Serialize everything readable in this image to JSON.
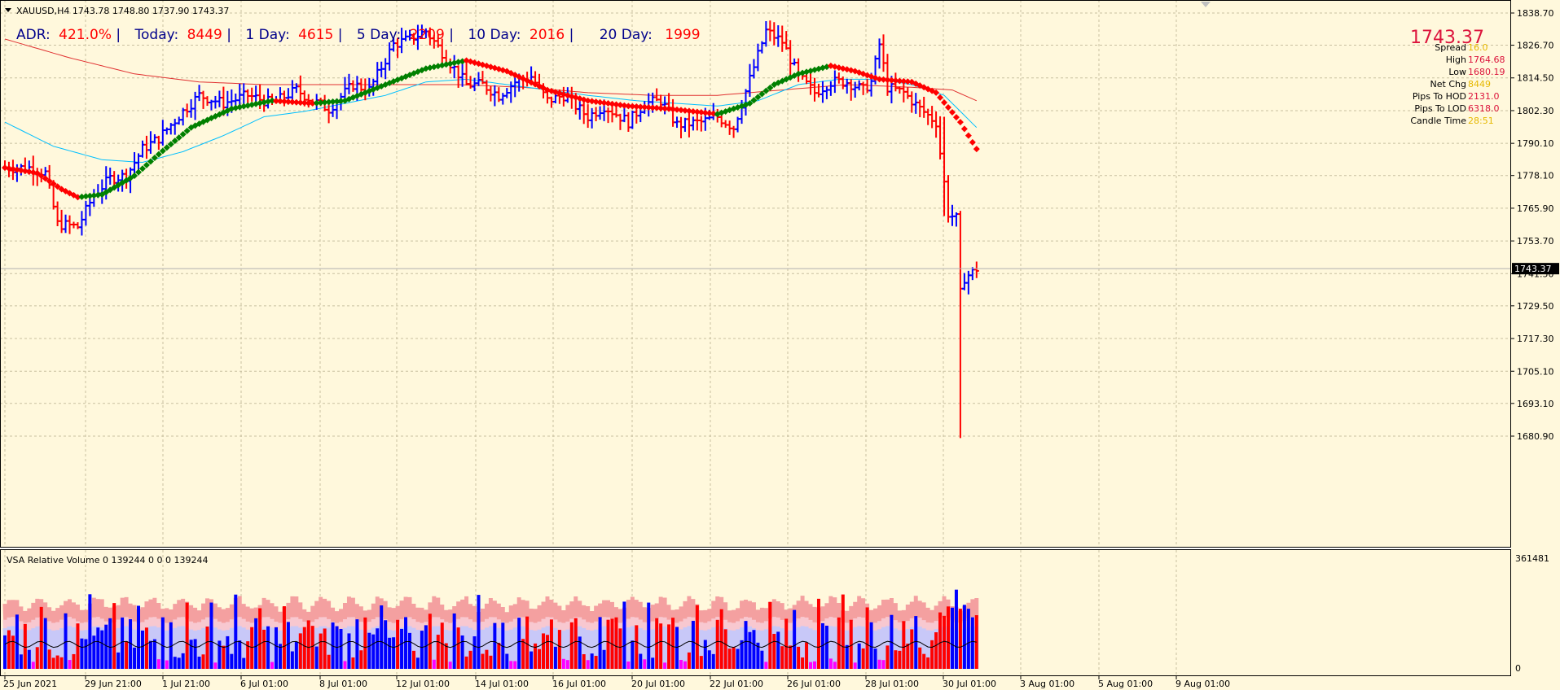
{
  "header": {
    "symbol_line": "XAUUSD,H4  1743.78 1748.80 1737.90 1743.37",
    "adr_label": "ADR:",
    "adr_value": "421.0%",
    "today_label": "Today:",
    "today_value": "8449",
    "day1_label": "1 Day:",
    "day1_value": "4615",
    "day5_label": "5 Day:",
    "day5_value": "2209",
    "day10_label": "10 Day:",
    "day10_value": "2016",
    "day20_label": "20 Day:",
    "day20_value": "1999"
  },
  "info_panel": {
    "price": "1743.37",
    "rows": [
      {
        "label": "Spread",
        "value": "16.0",
        "color": "#e6b800"
      },
      {
        "label": "High",
        "value": "1764.68",
        "color": "#dc143c"
      },
      {
        "label": "Low",
        "value": "1680.19",
        "color": "#dc143c"
      },
      {
        "label": "Net Chg",
        "value": "8449",
        "color": "#e6b800"
      },
      {
        "label": "Pips To HOD",
        "value": "2131.0",
        "color": "#dc143c"
      },
      {
        "label": "Pips To LOD",
        "value": "6318.0",
        "color": "#dc143c"
      },
      {
        "label": "Candle Time",
        "value": "28:51",
        "color": "#e6b800"
      }
    ]
  },
  "current_price_tag": "1743.37",
  "indicator": {
    "title": "VSA Relative Volume 0 139244 0 0 0 139244",
    "scale_top": "361481",
    "scale_bottom": "0"
  },
  "colors": {
    "background": "#fff8dc",
    "grid": "#c8c0a0",
    "bull_bar": "#0000ff",
    "bear_bar": "#ff0000",
    "ma_up": "#008000",
    "ma_down": "#ff0000",
    "ma_cyan": "#00bfff",
    "ma_red": "#e03030",
    "vol_band1": "#f4a0a0",
    "vol_band2": "#f8c8d0",
    "vol_band3": "#c8c8f8",
    "vol_climax": "#ff00ff"
  },
  "chart_data": {
    "type": "ohlc",
    "y_ticks": [
      "1838.70",
      "1826.70",
      "1814.50",
      "1802.30",
      "1790.10",
      "1778.10",
      "1765.90",
      "1753.70",
      "1741.50",
      "1729.50",
      "1717.30",
      "1705.10",
      "1693.10",
      "1680.90"
    ],
    "ylim": [
      1677,
      1841
    ],
    "x_ticks": [
      "25 Jun 2021",
      "29 Jun 21:00",
      "1 Jul 21:00",
      "6 Jul 01:00",
      "8 Jul 01:00",
      "12 Jul 01:00",
      "14 Jul 01:00",
      "16 Jul 01:00",
      "20 Jul 01:00",
      "22 Jul 01:00",
      "26 Jul 01:00",
      "28 Jul 01:00",
      "30 Jul 01:00",
      "3 Aug 01:00",
      "5 Aug 01:00",
      "9 Aug 01:00"
    ],
    "price_anchors": [
      [
        0,
        1781
      ],
      [
        6,
        1781
      ],
      [
        10,
        1779
      ],
      [
        13,
        1760
      ],
      [
        18,
        1759
      ],
      [
        22,
        1771
      ],
      [
        26,
        1777
      ],
      [
        30,
        1778
      ],
      [
        34,
        1788
      ],
      [
        38,
        1792
      ],
      [
        44,
        1802
      ],
      [
        48,
        1808
      ],
      [
        54,
        1805
      ],
      [
        60,
        1808
      ],
      [
        66,
        1805
      ],
      [
        72,
        1810
      ],
      [
        76,
        1806
      ],
      [
        80,
        1803
      ],
      [
        86,
        1812
      ],
      [
        90,
        1810
      ],
      [
        96,
        1827
      ],
      [
        100,
        1829
      ],
      [
        104,
        1832
      ],
      [
        110,
        1820
      ],
      [
        114,
        1812
      ],
      [
        118,
        1812
      ],
      [
        122,
        1808
      ],
      [
        126,
        1813
      ],
      [
        130,
        1815
      ],
      [
        134,
        1806
      ],
      [
        138,
        1808
      ],
      [
        144,
        1800
      ],
      [
        148,
        1804
      ],
      [
        154,
        1798
      ],
      [
        158,
        1805
      ],
      [
        162,
        1806
      ],
      [
        166,
        1797
      ],
      [
        172,
        1798
      ],
      [
        176,
        1800
      ],
      [
        180,
        1796
      ],
      [
        184,
        1814
      ],
      [
        188,
        1832
      ],
      [
        192,
        1828
      ],
      [
        196,
        1815
      ],
      [
        200,
        1809
      ],
      [
        204,
        1813
      ],
      [
        208,
        1813
      ],
      [
        212,
        1810
      ],
      [
        214,
        1813
      ],
      [
        216,
        1827
      ],
      [
        218,
        1811
      ],
      [
        222,
        1809
      ],
      [
        226,
        1803
      ],
      [
        230,
        1798
      ],
      [
        233,
        1764
      ],
      [
        235,
        1762
      ],
      [
        236,
        1734
      ],
      [
        237,
        1740
      ],
      [
        239,
        1742
      ],
      [
        240,
        1743.37
      ]
    ],
    "special_lows": [
      [
        236,
        1680.19
      ]
    ],
    "ma_green_red": [
      [
        0,
        1781
      ],
      [
        8,
        1779
      ],
      [
        14,
        1773
      ],
      [
        18,
        1770
      ],
      [
        24,
        1771
      ],
      [
        32,
        1778
      ],
      [
        38,
        1786
      ],
      [
        46,
        1796
      ],
      [
        56,
        1803
      ],
      [
        66,
        1806
      ],
      [
        76,
        1805
      ],
      [
        84,
        1806
      ],
      [
        94,
        1812
      ],
      [
        104,
        1818
      ],
      [
        114,
        1821
      ],
      [
        124,
        1817
      ],
      [
        134,
        1810
      ],
      [
        144,
        1806
      ],
      [
        154,
        1804
      ],
      [
        164,
        1803
      ],
      [
        176,
        1801
      ],
      [
        184,
        1805
      ],
      [
        190,
        1812
      ],
      [
        196,
        1816
      ],
      [
        204,
        1819
      ],
      [
        210,
        1817
      ],
      [
        216,
        1814
      ],
      [
        224,
        1813
      ],
      [
        230,
        1809
      ],
      [
        236,
        1798
      ],
      [
        240,
        1788
      ]
    ],
    "ma_cyan": [
      [
        0,
        1798
      ],
      [
        12,
        1789
      ],
      [
        24,
        1784
      ],
      [
        34,
        1783
      ],
      [
        44,
        1787
      ],
      [
        54,
        1793
      ],
      [
        64,
        1800
      ],
      [
        74,
        1802
      ],
      [
        84,
        1805
      ],
      [
        94,
        1808
      ],
      [
        104,
        1813
      ],
      [
        114,
        1814
      ],
      [
        124,
        1812
      ],
      [
        134,
        1810
      ],
      [
        144,
        1808
      ],
      [
        156,
        1806
      ],
      [
        166,
        1805
      ],
      [
        176,
        1804
      ],
      [
        186,
        1806
      ],
      [
        196,
        1812
      ],
      [
        206,
        1814
      ],
      [
        216,
        1814
      ],
      [
        224,
        1812
      ],
      [
        232,
        1808
      ],
      [
        240,
        1796
      ]
    ],
    "ma_red": [
      [
        0,
        1829
      ],
      [
        16,
        1822
      ],
      [
        32,
        1816
      ],
      [
        48,
        1813
      ],
      [
        64,
        1812
      ],
      [
        80,
        1812
      ],
      [
        96,
        1812
      ],
      [
        112,
        1812
      ],
      [
        128,
        1811
      ],
      [
        144,
        1809
      ],
      [
        160,
        1808
      ],
      [
        176,
        1808
      ],
      [
        192,
        1810
      ],
      [
        208,
        1812
      ],
      [
        224,
        1811
      ],
      [
        234,
        1810
      ],
      [
        240,
        1806
      ]
    ]
  }
}
